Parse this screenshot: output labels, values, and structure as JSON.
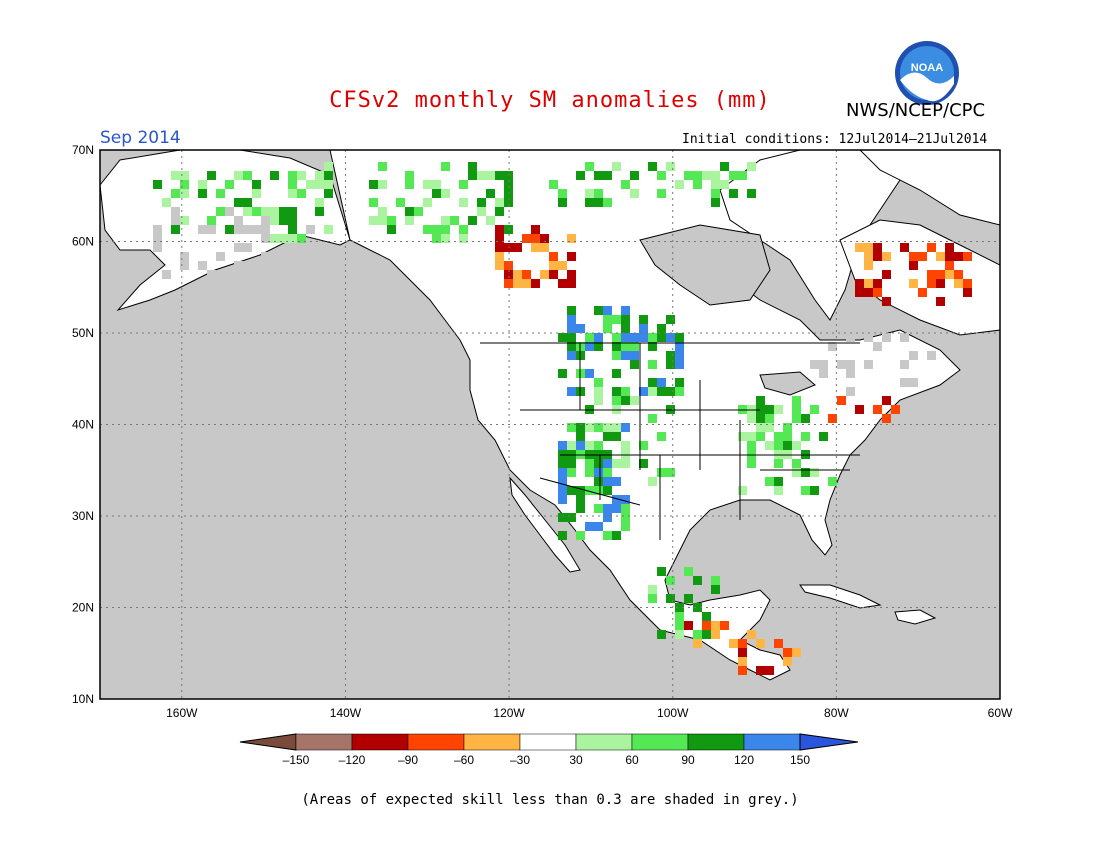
{
  "header": {
    "title": "CFSv2 monthly SM anomalies (mm)",
    "organization": "NWS/NCEP/CPC",
    "logo_text": "NOAA",
    "valid_month": "Sep 2014",
    "initial_conditions": "Initial conditions: 12Jul2014–21Jul2014"
  },
  "colors": {
    "title": "#dd0000",
    "month": "#2a55cc",
    "ocean": "#c8c8c8",
    "land": "#ffffff",
    "grid": "#777777"
  },
  "map": {
    "lat_labels": [
      "70N",
      "60N",
      "50N",
      "40N",
      "30N",
      "20N",
      "10N"
    ],
    "lon_labels": [
      "160W",
      "140W",
      "120W",
      "100W",
      "80W",
      "60W"
    ]
  },
  "colorbar": {
    "labels": [
      "–150",
      "–120",
      "–90",
      "–60",
      "–30",
      "30",
      "60",
      "90",
      "120",
      "150"
    ],
    "colors": [
      "#7a4a3a",
      "#a5756a",
      "#b20000",
      "#ff4400",
      "#ffb443",
      "#ffffff",
      "#aaf4a0",
      "#55e855",
      "#119911",
      "#3a86ea",
      "#2a55dd"
    ]
  },
  "footer": {
    "note": "(Areas of expected skill less than 0.3 are shaded in grey.)"
  }
}
